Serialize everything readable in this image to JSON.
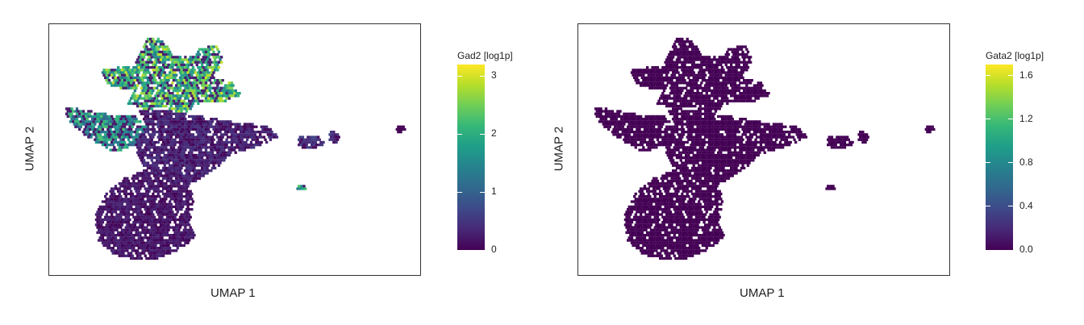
{
  "chart_data": [
    {
      "type": "scatter",
      "subtype": "hexbin-umap",
      "xlabel": "UMAP 1",
      "ylabel": "UMAP 2",
      "xticks": [],
      "yticks": [],
      "grid": false,
      "legend_placement": "right",
      "colormap": "viridis",
      "colorbar": {
        "title": "Gad2 [log1p]",
        "range": [
          0,
          3.2
        ],
        "ticks": [
          0,
          1,
          2,
          3
        ],
        "tick_labels": [
          "0",
          "1",
          "2",
          "3"
        ]
      },
      "expression_by_region": [
        {
          "region": "upper branches",
          "mean_value": 1.8
        },
        {
          "region": "left arm",
          "mean_value": 1.4
        },
        {
          "region": "central body",
          "mean_value": 0.3
        },
        {
          "region": "lower lobe",
          "mean_value": 0.2
        },
        {
          "region": "small right cluster",
          "mean_value": 0.4
        },
        {
          "region": "isolated spot",
          "mean_value": 1.6
        }
      ]
    },
    {
      "type": "scatter",
      "subtype": "hexbin-umap",
      "xlabel": "UMAP 1",
      "ylabel": "UMAP 2",
      "xticks": [],
      "yticks": [],
      "grid": false,
      "legend_placement": "right",
      "colormap": "viridis",
      "colorbar": {
        "title": "Gata2 [log1p]",
        "range": [
          0,
          1.7
        ],
        "ticks": [
          0.0,
          0.4,
          0.8,
          1.2,
          1.6
        ],
        "tick_labels": [
          "0.0",
          "0.4",
          "0.8",
          "1.2",
          "1.6"
        ]
      },
      "expression_by_region": [
        {
          "region": "upper branches",
          "mean_value": 0.0
        },
        {
          "region": "left arm",
          "mean_value": 0.0
        },
        {
          "region": "central body",
          "mean_value": 0.0
        },
        {
          "region": "lower lobe",
          "mean_value": 0.0
        },
        {
          "region": "small right cluster",
          "mean_value": 0.0
        },
        {
          "region": "isolated spot",
          "mean_value": 0.0
        }
      ]
    }
  ],
  "colors": {
    "viridis": [
      "#440154",
      "#482878",
      "#3e4989",
      "#31688e",
      "#26828e",
      "#1f9e89",
      "#35b779",
      "#6ece58",
      "#b5de2b",
      "#fde725"
    ],
    "frame": "#333333",
    "background": "#ffffff"
  }
}
